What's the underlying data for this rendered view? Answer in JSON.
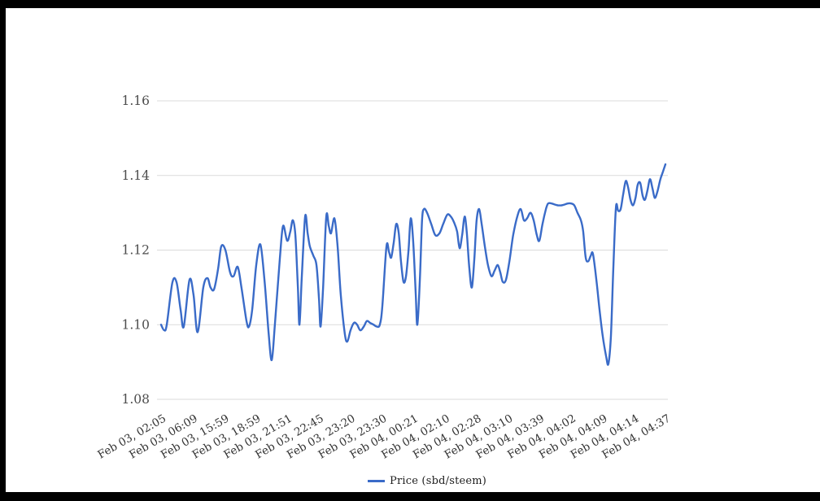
{
  "frame": {
    "border_color": "#000000"
  },
  "legend": {
    "label": "Price (sbd/steem)"
  },
  "chart_data": {
    "type": "line",
    "title": "",
    "series_name": "Price (sbd/steem)",
    "line_color": "#3a6bc8",
    "gridline_color": "#dbdbdb",
    "axis_label_color": "#4d4d4d",
    "x_label_color": "#333333",
    "grid": true,
    "legend_position": "bottom",
    "y_tick_labels": [
      "1.16",
      "1.14",
      "1.12",
      "1.10",
      "1.08"
    ],
    "y_ticks": [
      1.16,
      1.14,
      1.12,
      1.1,
      1.08
    ],
    "ylim": [
      1.08,
      1.16
    ],
    "x_labels": [
      "Feb 03, 02:05",
      "Feb 03, 06:09",
      "Feb 03, 15:59",
      "Feb 03, 18:59",
      "Feb 03, 21:51",
      "Feb 03, 22:45",
      "Feb 03, 23:20",
      "Feb 03, 23:30",
      "Feb 04, 00:21",
      "Feb 04, 02:10",
      "Feb 04, 02:28",
      "Feb 04, 03:10",
      "Feb 04, 03:39",
      "Feb 04, 04:02",
      "Feb 04, 04:09",
      "Feb 04, 04:14",
      "Feb 04, 04:37"
    ],
    "points": [
      [
        0.0,
        1.1
      ],
      [
        0.1,
        1.0985
      ],
      [
        0.18,
        1.1
      ],
      [
        0.36,
        1.1113
      ],
      [
        0.49,
        1.1114
      ],
      [
        0.62,
        1.104
      ],
      [
        0.72,
        1.0995
      ],
      [
        0.9,
        1.112
      ],
      [
        1.03,
        1.108
      ],
      [
        1.16,
        1.098
      ],
      [
        1.34,
        1.11
      ],
      [
        1.47,
        1.1125
      ],
      [
        1.57,
        1.11
      ],
      [
        1.68,
        1.1095
      ],
      [
        1.81,
        1.115
      ],
      [
        1.91,
        1.121
      ],
      [
        2.04,
        1.12
      ],
      [
        2.19,
        1.114
      ],
      [
        2.3,
        1.113
      ],
      [
        2.43,
        1.1155
      ],
      [
        2.55,
        1.11
      ],
      [
        2.71,
        1.101
      ],
      [
        2.79,
        1.0995
      ],
      [
        2.89,
        1.104
      ],
      [
        3.02,
        1.116
      ],
      [
        3.15,
        1.1215
      ],
      [
        3.28,
        1.112
      ],
      [
        3.41,
        1.098
      ],
      [
        3.51,
        1.0905
      ],
      [
        3.61,
        1.1
      ],
      [
        3.77,
        1.118
      ],
      [
        3.87,
        1.1265
      ],
      [
        4.0,
        1.1225
      ],
      [
        4.1,
        1.125
      ],
      [
        4.18,
        1.128
      ],
      [
        4.26,
        1.124
      ],
      [
        4.34,
        1.11
      ],
      [
        4.39,
        1.1
      ],
      [
        4.46,
        1.112
      ],
      [
        4.57,
        1.129
      ],
      [
        4.65,
        1.1245
      ],
      [
        4.72,
        1.121
      ],
      [
        4.83,
        1.1185
      ],
      [
        4.93,
        1.116
      ],
      [
        5.01,
        1.107
      ],
      [
        5.06,
        1.0995
      ],
      [
        5.14,
        1.11
      ],
      [
        5.24,
        1.129
      ],
      [
        5.32,
        1.1265
      ],
      [
        5.39,
        1.1245
      ],
      [
        5.5,
        1.1285
      ],
      [
        5.6,
        1.121
      ],
      [
        5.7,
        1.108
      ],
      [
        5.83,
        1.0975
      ],
      [
        5.91,
        1.0955
      ],
      [
        6.01,
        1.0985
      ],
      [
        6.12,
        1.1005
      ],
      [
        6.22,
        1.1
      ],
      [
        6.32,
        1.0985
      ],
      [
        6.43,
        1.0995
      ],
      [
        6.53,
        1.101
      ],
      [
        6.63,
        1.1005
      ],
      [
        6.74,
        1.1
      ],
      [
        6.84,
        1.0995
      ],
      [
        6.94,
        1.1
      ],
      [
        7.02,
        1.105
      ],
      [
        7.15,
        1.121
      ],
      [
        7.23,
        1.1195
      ],
      [
        7.3,
        1.118
      ],
      [
        7.38,
        1.122
      ],
      [
        7.46,
        1.127
      ],
      [
        7.54,
        1.1245
      ],
      [
        7.61,
        1.117
      ],
      [
        7.69,
        1.1115
      ],
      [
        7.77,
        1.113
      ],
      [
        7.85,
        1.12
      ],
      [
        7.92,
        1.1285
      ],
      [
        8.0,
        1.122
      ],
      [
        8.08,
        1.108
      ],
      [
        8.13,
        1.1
      ],
      [
        8.21,
        1.112
      ],
      [
        8.28,
        1.128
      ],
      [
        8.34,
        1.131
      ],
      [
        8.44,
        1.13
      ],
      [
        8.57,
        1.127
      ],
      [
        8.7,
        1.124
      ],
      [
        8.83,
        1.1245
      ],
      [
        8.95,
        1.127
      ],
      [
        9.08,
        1.1295
      ],
      [
        9.19,
        1.129
      ],
      [
        9.29,
        1.1275
      ],
      [
        9.39,
        1.125
      ],
      [
        9.47,
        1.1205
      ],
      [
        9.55,
        1.124
      ],
      [
        9.63,
        1.129
      ],
      [
        9.7,
        1.1245
      ],
      [
        9.78,
        1.115
      ],
      [
        9.86,
        1.11
      ],
      [
        9.94,
        1.118
      ],
      [
        10.01,
        1.128
      ],
      [
        10.09,
        1.131
      ],
      [
        10.17,
        1.127
      ],
      [
        10.27,
        1.121
      ],
      [
        10.37,
        1.116
      ],
      [
        10.48,
        1.113
      ],
      [
        10.58,
        1.1145
      ],
      [
        10.68,
        1.116
      ],
      [
        10.76,
        1.114
      ],
      [
        10.84,
        1.1115
      ],
      [
        10.94,
        1.112
      ],
      [
        11.05,
        1.117
      ],
      [
        11.17,
        1.124
      ],
      [
        11.3,
        1.129
      ],
      [
        11.41,
        1.131
      ],
      [
        11.51,
        1.128
      ],
      [
        11.61,
        1.1285
      ],
      [
        11.72,
        1.13
      ],
      [
        11.82,
        1.128
      ],
      [
        11.92,
        1.124
      ],
      [
        12.0,
        1.1225
      ],
      [
        12.1,
        1.127
      ],
      [
        12.21,
        1.131
      ],
      [
        12.28,
        1.1325
      ],
      [
        12.39,
        1.1325
      ],
      [
        12.49,
        1.1322
      ],
      [
        12.59,
        1.132
      ],
      [
        12.7,
        1.132
      ],
      [
        12.8,
        1.1322
      ],
      [
        12.9,
        1.1325
      ],
      [
        13.01,
        1.1325
      ],
      [
        13.11,
        1.132
      ],
      [
        13.21,
        1.13
      ],
      [
        13.32,
        1.128
      ],
      [
        13.39,
        1.125
      ],
      [
        13.47,
        1.118
      ],
      [
        13.55,
        1.117
      ],
      [
        13.63,
        1.1185
      ],
      [
        13.7,
        1.119
      ],
      [
        13.81,
        1.112
      ],
      [
        13.91,
        1.104
      ],
      [
        14.01,
        1.097
      ],
      [
        14.12,
        1.0915
      ],
      [
        14.19,
        1.0895
      ],
      [
        14.27,
        1.097
      ],
      [
        14.35,
        1.116
      ],
      [
        14.43,
        1.1315
      ],
      [
        14.5,
        1.1305
      ],
      [
        14.58,
        1.131
      ],
      [
        14.66,
        1.135
      ],
      [
        14.74,
        1.1385
      ],
      [
        14.81,
        1.137
      ],
      [
        14.89,
        1.1335
      ],
      [
        14.97,
        1.132
      ],
      [
        15.05,
        1.134
      ],
      [
        15.12,
        1.1375
      ],
      [
        15.2,
        1.138
      ],
      [
        15.28,
        1.1345
      ],
      [
        15.35,
        1.1335
      ],
      [
        15.43,
        1.136
      ],
      [
        15.51,
        1.139
      ],
      [
        15.59,
        1.1365
      ],
      [
        15.66,
        1.134
      ],
      [
        15.74,
        1.1355
      ],
      [
        15.84,
        1.139
      ],
      [
        15.92,
        1.141
      ],
      [
        16.0,
        1.143
      ]
    ]
  }
}
